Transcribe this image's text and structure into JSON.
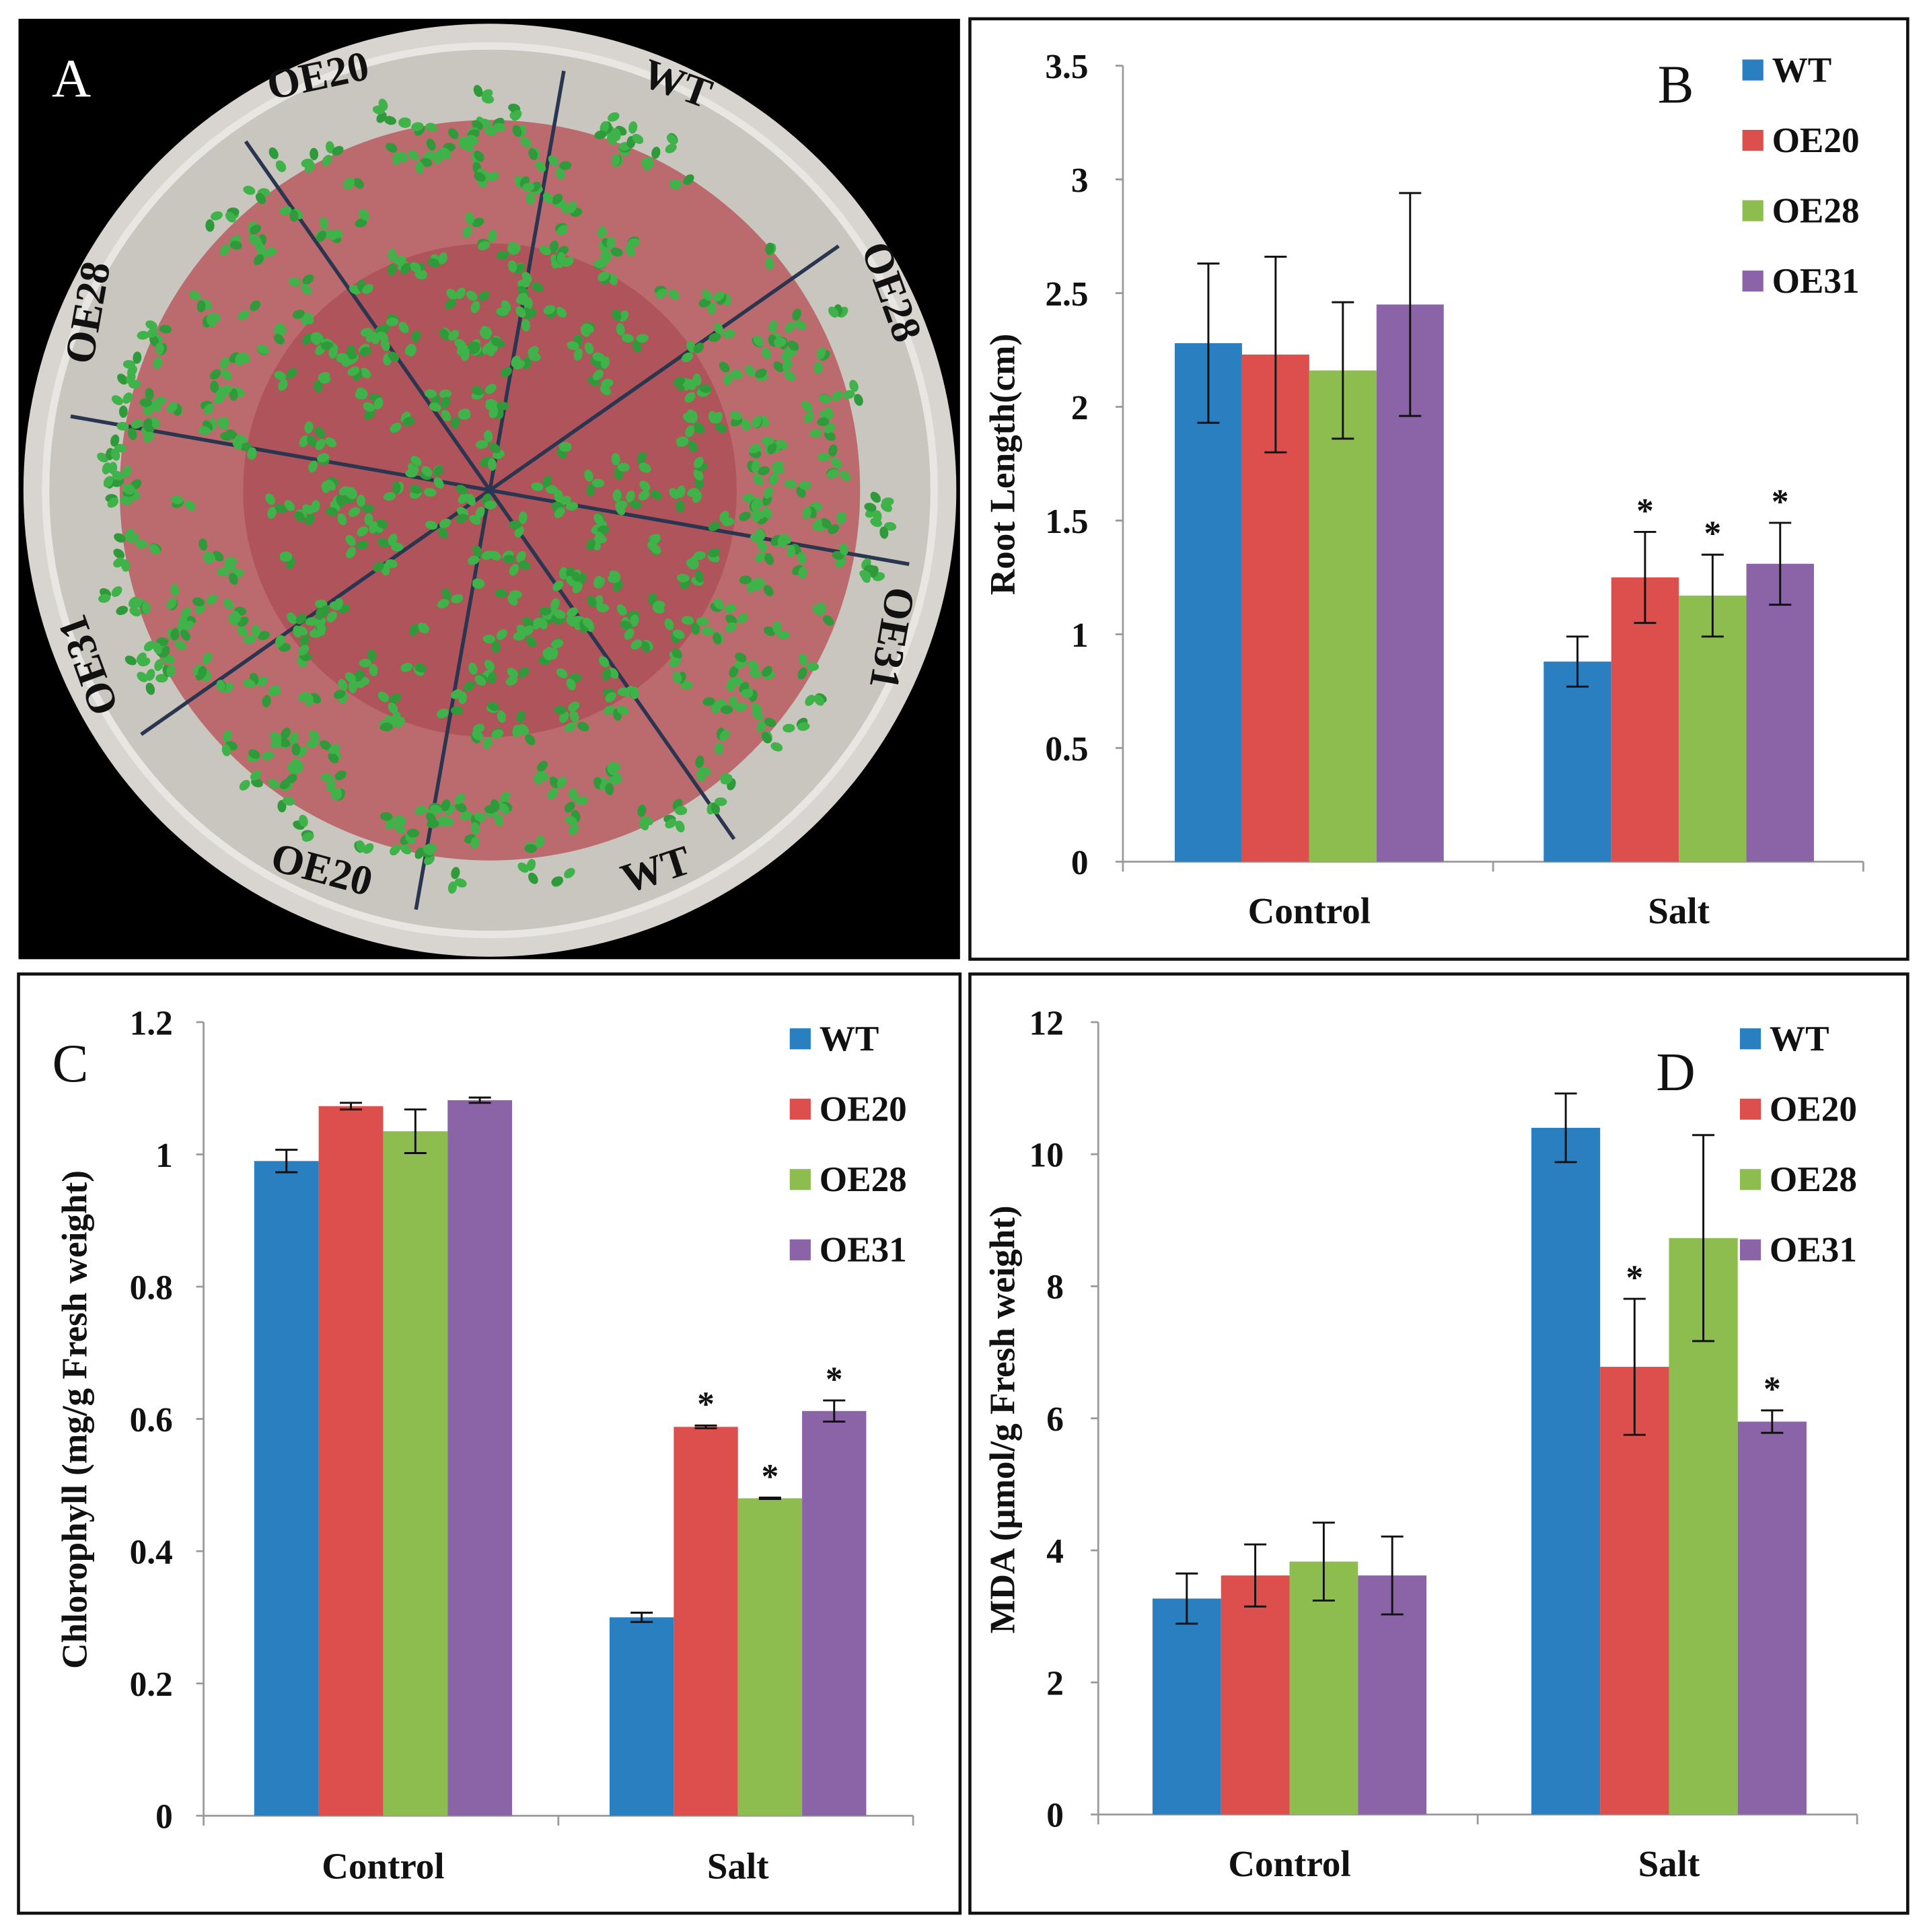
{
  "colors": {
    "WT": "#2a7fc0",
    "OE20": "#dc4f4c",
    "OE28": "#8cbd4e",
    "OE31": "#8a64a6"
  },
  "panel_a": {
    "letter": "A",
    "sector_labels": [
      "OE20",
      "WT",
      "OE28",
      "OE31",
      "WT",
      "OE20",
      "OE31",
      "OE28"
    ]
  },
  "chart_data": [
    {
      "panel": "B",
      "type": "bar",
      "categories": [
        "Control",
        "Salt"
      ],
      "ylabel": "Root Length(cm)",
      "ylim": [
        0,
        3.5
      ],
      "yticks": [
        "0",
        "0.5",
        "1",
        "1.5",
        "2",
        "2.5",
        "3",
        "3.5"
      ],
      "ytick_values": [
        0,
        0.5,
        1,
        1.5,
        2,
        2.5,
        3,
        3.5
      ],
      "legend": "top-right",
      "grid": false,
      "series": [
        {
          "name": "WT",
          "values": [
            2.28,
            0.88
          ],
          "errors": [
            0.35,
            0.11
          ],
          "sig": [
            false,
            false
          ]
        },
        {
          "name": "OE20",
          "values": [
            2.23,
            1.25
          ],
          "errors": [
            0.43,
            0.2
          ],
          "sig": [
            false,
            true
          ]
        },
        {
          "name": "OE28",
          "values": [
            2.16,
            1.17
          ],
          "errors": [
            0.3,
            0.18
          ],
          "sig": [
            false,
            true
          ]
        },
        {
          "name": "OE31",
          "values": [
            2.45,
            1.31
          ],
          "errors": [
            0.49,
            0.18
          ],
          "sig": [
            false,
            true
          ]
        }
      ]
    },
    {
      "panel": "C",
      "type": "bar",
      "categories": [
        "Control",
        "Salt"
      ],
      "ylabel": "Chlorophyll  (mg/g Fresh weight)",
      "ylim": [
        0,
        1.2
      ],
      "yticks": [
        "0",
        "0.2",
        "0.4",
        "0.6",
        "0.8",
        "1",
        "1.2"
      ],
      "ytick_values": [
        0,
        0.2,
        0.4,
        0.6,
        0.8,
        1,
        1.2
      ],
      "legend": "top-right",
      "grid": false,
      "series": [
        {
          "name": "WT",
          "values": [
            0.99,
            0.3
          ],
          "errors": [
            0.017,
            0.007
          ],
          "sig": [
            false,
            false
          ]
        },
        {
          "name": "OE20",
          "values": [
            1.073,
            0.588
          ],
          "errors": [
            0.005,
            0.002
          ],
          "sig": [
            false,
            true
          ]
        },
        {
          "name": "OE28",
          "values": [
            1.035,
            0.48
          ],
          "errors": [
            0.033,
            0.001
          ],
          "sig": [
            false,
            true
          ]
        },
        {
          "name": "OE31",
          "values": [
            1.082,
            0.612
          ],
          "errors": [
            0.004,
            0.016
          ],
          "sig": [
            false,
            true
          ]
        }
      ]
    },
    {
      "panel": "D",
      "type": "bar",
      "categories": [
        "Control",
        "Salt"
      ],
      "ylabel": "MDA (μmol/g Fresh weight)",
      "ylim": [
        0,
        12
      ],
      "yticks": [
        "0",
        "2",
        "4",
        "6",
        "8",
        "10",
        "12"
      ],
      "ytick_values": [
        0,
        2,
        4,
        6,
        8,
        10,
        12
      ],
      "legend": "top-right",
      "grid": false,
      "series": [
        {
          "name": "WT",
          "values": [
            3.27,
            10.4
          ],
          "errors": [
            0.38,
            0.52
          ],
          "sig": [
            false,
            false
          ]
        },
        {
          "name": "OE20",
          "values": [
            3.62,
            6.78
          ],
          "errors": [
            0.47,
            1.03
          ],
          "sig": [
            false,
            true
          ]
        },
        {
          "name": "OE28",
          "values": [
            3.83,
            8.73
          ],
          "errors": [
            0.59,
            1.56
          ],
          "sig": [
            false,
            false
          ]
        },
        {
          "name": "OE31",
          "values": [
            3.62,
            5.95
          ],
          "errors": [
            0.59,
            0.17
          ],
          "sig": [
            false,
            true
          ]
        }
      ]
    }
  ]
}
